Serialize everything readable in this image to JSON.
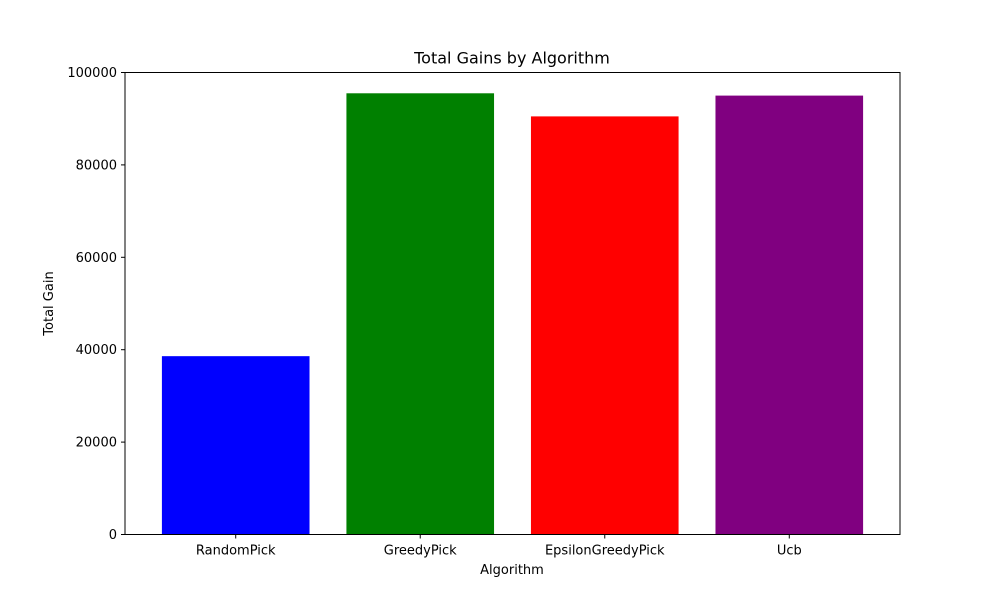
{
  "chart_data": {
    "type": "bar",
    "title": "Total Gains by Algorithm",
    "xlabel": "Algorithm",
    "ylabel": "Total Gain",
    "categories": [
      "RandomPick",
      "GreedyPick",
      "EpsilonGreedyPick",
      "Ucb"
    ],
    "values": [
      38600,
      95500,
      90500,
      95000
    ],
    "colors": [
      "#0000ff",
      "#008000",
      "#ff0000",
      "#800080"
    ],
    "ylim": [
      0,
      100000
    ],
    "yticks": [
      0,
      20000,
      40000,
      60000,
      80000,
      100000
    ],
    "ytick_labels": [
      "0",
      "20000",
      "40000",
      "60000",
      "80000",
      "100000"
    ],
    "grid": false,
    "legend": false
  }
}
